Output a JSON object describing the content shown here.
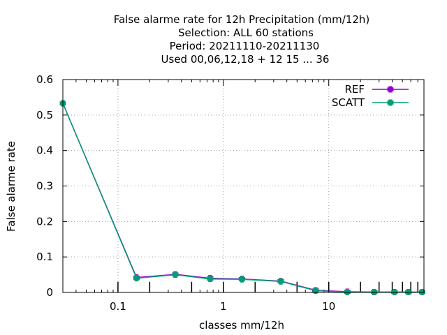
{
  "chart_data": {
    "type": "line",
    "title_lines": [
      "False alarme rate  for 12h Precipitation (mm/12h)",
      "Selection: ALL     60 stations",
      "Period: 20211110-20211130",
      "Used  00,06,12,18 + 12 15 ... 36"
    ],
    "xlabel": "classes mm/12h",
    "ylabel": "False alarme rate",
    "x_scale": "log",
    "xlim": [
      0.03,
      80
    ],
    "ylim": [
      0,
      0.6
    ],
    "x_ticks": [
      0.1,
      1,
      10
    ],
    "x_tick_labels": [
      "0.1",
      "1",
      "10"
    ],
    "y_ticks": [
      0,
      0.1,
      0.2,
      0.3,
      0.4,
      0.5,
      0.6
    ],
    "y_tick_labels": [
      "0",
      "0.1",
      "0.2",
      "0.3",
      "0.4",
      "0.5",
      "0.6"
    ],
    "grid": true,
    "legend_position": "top-right",
    "series": [
      {
        "name": "REF",
        "color": "#9400d3",
        "x": [
          0.03,
          0.15,
          0.35,
          0.75,
          1.5,
          3.5,
          7.5,
          15,
          27,
          42,
          57,
          77
        ],
        "y": [
          0.533,
          0.042,
          0.051,
          0.04,
          0.038,
          0.032,
          0.006,
          0.002,
          0.001,
          0.001,
          0.001,
          0.001
        ]
      },
      {
        "name": "SCATT",
        "color": "#009e73",
        "x": [
          0.03,
          0.15,
          0.35,
          0.75,
          1.5,
          3.5,
          7.5,
          15,
          27,
          42,
          57,
          77
        ],
        "y": [
          0.533,
          0.04,
          0.05,
          0.038,
          0.037,
          0.031,
          0.005,
          0.001,
          0.001,
          0.001,
          0.001,
          0.001
        ]
      }
    ],
    "bottom_bars": [
      {
        "x": 0.1,
        "value": 0.03
      },
      {
        "x": 0.2,
        "value": 0.03
      },
      {
        "x": 0.5,
        "value": 0.03
      },
      {
        "x": 1,
        "value": 0.03
      },
      {
        "x": 2,
        "value": 0.03
      },
      {
        "x": 5,
        "value": 0.03
      },
      {
        "x": 10,
        "value": 0.03
      },
      {
        "x": 20,
        "value": 0.03
      },
      {
        "x": 30,
        "value": 0.03
      },
      {
        "x": 40,
        "value": 0.03
      },
      {
        "x": 50,
        "value": 0.03
      },
      {
        "x": 60,
        "value": 0.03
      },
      {
        "x": 70,
        "value": 0.03
      }
    ]
  }
}
